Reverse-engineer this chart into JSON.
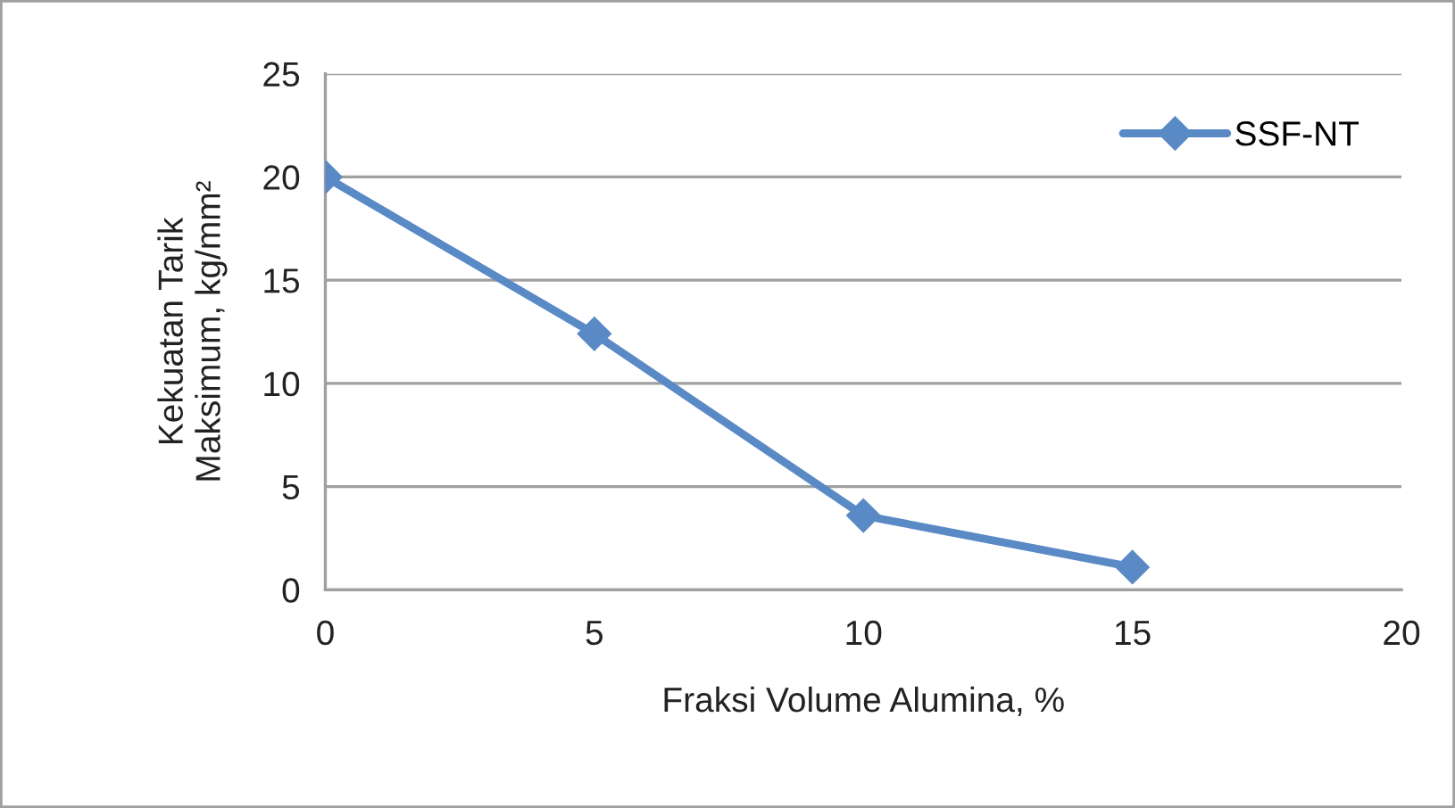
{
  "chart_data": {
    "type": "line",
    "xlabel": "Fraksi Volume Alumina, %",
    "ylabel": "Kekuatan Tarik\nMaksimum, kg/mm²",
    "x": [
      0,
      5,
      10,
      15
    ],
    "series": [
      {
        "name": "SSF-NT",
        "color": "#5a8ac6",
        "values": [
          20,
          12.4,
          3.6,
          1.1
        ]
      }
    ],
    "xlim": [
      0,
      20
    ],
    "xticks": [
      0,
      5,
      10,
      15,
      20
    ],
    "ylim": [
      0,
      25
    ],
    "yticks": [
      0,
      5,
      10,
      15,
      20,
      25
    ],
    "grid": "y",
    "legend": "top right",
    "marker": "diamond",
    "line_style": "solid"
  }
}
